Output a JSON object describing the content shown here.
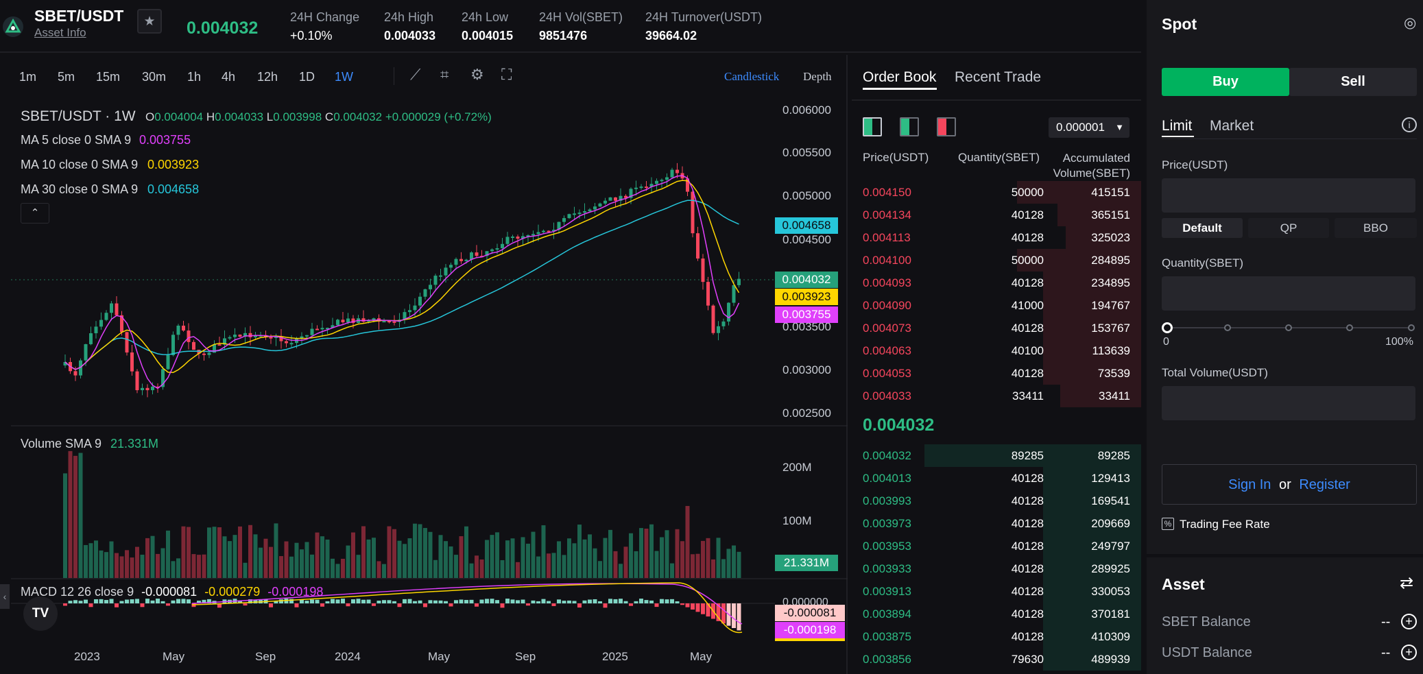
{
  "header": {
    "pair": "SBET/USDT",
    "asset_info": "Asset Info",
    "last_price": "0.004032",
    "stats": [
      {
        "label": "24H Change",
        "value": "+0.10%"
      },
      {
        "label": "24h High",
        "value": "0.004033"
      },
      {
        "label": "24h Low",
        "value": "0.004015"
      },
      {
        "label": "24H Vol(SBET)",
        "value": "9851476"
      },
      {
        "label": "24H Turnover(USDT)",
        "value": "39664.02"
      }
    ]
  },
  "chart": {
    "timeframes": [
      "1m",
      "5m",
      "15m",
      "30m",
      "1h",
      "4h",
      "12h",
      "1D",
      "1W"
    ],
    "active_timeframe": "1W",
    "view_modes": [
      "Candlestick",
      "Depth"
    ],
    "legend_title": "SBET/USDT · 1W",
    "ohlc": {
      "o_label": "O",
      "o": "0.004004",
      "h_label": "H",
      "h": "0.004033",
      "l_label": "L",
      "l": "0.003998",
      "c_label": "C",
      "c": "0.004032",
      "change": "+0.000029 (+0.72%)"
    },
    "ma": [
      {
        "label": "MA 5 close 0 SMA 9",
        "value": "0.003755",
        "color": "#e040fb"
      },
      {
        "label": "MA 10 close 0 SMA 9",
        "value": "0.003923",
        "color": "#ffd600"
      },
      {
        "label": "MA 30 close 0 SMA 9",
        "value": "0.004658",
        "color": "#26c6da"
      }
    ],
    "price_axis": [
      "0.006000",
      "0.005500",
      "0.005000",
      "0.004500",
      "0.003500",
      "0.003000",
      "0.002500"
    ],
    "price_tags": [
      {
        "value": "0.004658",
        "color": "#26c6da"
      },
      {
        "value": "0.004032",
        "color": "#26a17b"
      },
      {
        "value": "0.003923",
        "color": "#ffd600"
      },
      {
        "value": "0.003755",
        "color": "#e040fb"
      }
    ],
    "volume_label": "Volume SMA 9",
    "volume_value": "21.331M",
    "volume_axis": [
      "200M",
      "100M"
    ],
    "volume_tag": "21.331M",
    "macd_label": "MACD 12 26 close 9",
    "macd_values": [
      "-0.000081",
      "-0.000279",
      "-0.000198"
    ],
    "macd_axis_top": "0.000000",
    "macd_tags": [
      "-0.000081",
      "-0.000198"
    ],
    "time_axis": [
      "2023",
      "May",
      "Sep",
      "2024",
      "May",
      "Sep",
      "2025",
      "May"
    ]
  },
  "orderbook": {
    "tabs": [
      "Order Book",
      "Recent Trade"
    ],
    "precision": "0.000001",
    "headers": [
      "Price(USDT)",
      "Quantity(SBET)",
      "Accumulated Volume(SBET)"
    ],
    "asks": [
      {
        "price": "0.004150",
        "qty": "50000",
        "acc": "415151",
        "depth": 0.43
      },
      {
        "price": "0.004134",
        "qty": "40128",
        "acc": "365151",
        "depth": 0.29
      },
      {
        "price": "0.004113",
        "qty": "40128",
        "acc": "325023",
        "depth": 0.26
      },
      {
        "price": "0.004100",
        "qty": "50000",
        "acc": "284895",
        "depth": 0.43
      },
      {
        "price": "0.004093",
        "qty": "40128",
        "acc": "234895",
        "depth": 0.34
      },
      {
        "price": "0.004090",
        "qty": "41000",
        "acc": "194767",
        "depth": 0.34
      },
      {
        "price": "0.004073",
        "qty": "40128",
        "acc": "153767",
        "depth": 0.34
      },
      {
        "price": "0.004063",
        "qty": "40100",
        "acc": "113639",
        "depth": 0.34
      },
      {
        "price": "0.004053",
        "qty": "40128",
        "acc": "73539",
        "depth": 0.34
      },
      {
        "price": "0.004033",
        "qty": "33411",
        "acc": "33411",
        "depth": 0.28
      }
    ],
    "mid_price": "0.004032",
    "bids": [
      {
        "price": "0.004032",
        "qty": "89285",
        "acc": "89285",
        "depth": 0.75
      },
      {
        "price": "0.004013",
        "qty": "40128",
        "acc": "129413",
        "depth": 0.34
      },
      {
        "price": "0.003993",
        "qty": "40128",
        "acc": "169541",
        "depth": 0.34
      },
      {
        "price": "0.003973",
        "qty": "40128",
        "acc": "209669",
        "depth": 0.34
      },
      {
        "price": "0.003953",
        "qty": "40128",
        "acc": "249797",
        "depth": 0.34
      },
      {
        "price": "0.003933",
        "qty": "40128",
        "acc": "289925",
        "depth": 0.34
      },
      {
        "price": "0.003913",
        "qty": "40128",
        "acc": "330053",
        "depth": 0.34
      },
      {
        "price": "0.003894",
        "qty": "40128",
        "acc": "370181",
        "depth": 0.34
      },
      {
        "price": "0.003875",
        "qty": "40128",
        "acc": "410309",
        "depth": 0.34
      },
      {
        "price": "0.003856",
        "qty": "79630",
        "acc": "489939",
        "depth": 0.34
      }
    ]
  },
  "spot": {
    "title": "Spot",
    "buy": "Buy",
    "sell": "Sell",
    "order_types": [
      "Limit",
      "Market"
    ],
    "price_label": "Price(USDT)",
    "price_modes": [
      "Default",
      "QP",
      "BBO"
    ],
    "quantity_label": "Quantity(SBET)",
    "slider_min": "0",
    "slider_max": "100%",
    "total_label": "Total Volume(USDT)",
    "sign_in": "Sign In",
    "or": "or",
    "register": "Register",
    "fee_rate": "Trading Fee Rate"
  },
  "asset": {
    "title": "Asset",
    "rows": [
      {
        "label": "SBET Balance",
        "value": "--"
      },
      {
        "label": "USDT Balance",
        "value": "--"
      }
    ]
  },
  "colors": {
    "up": "#2ebd85",
    "down": "#f6465d",
    "accent": "#3d8bfd",
    "buy": "#00b25e"
  }
}
